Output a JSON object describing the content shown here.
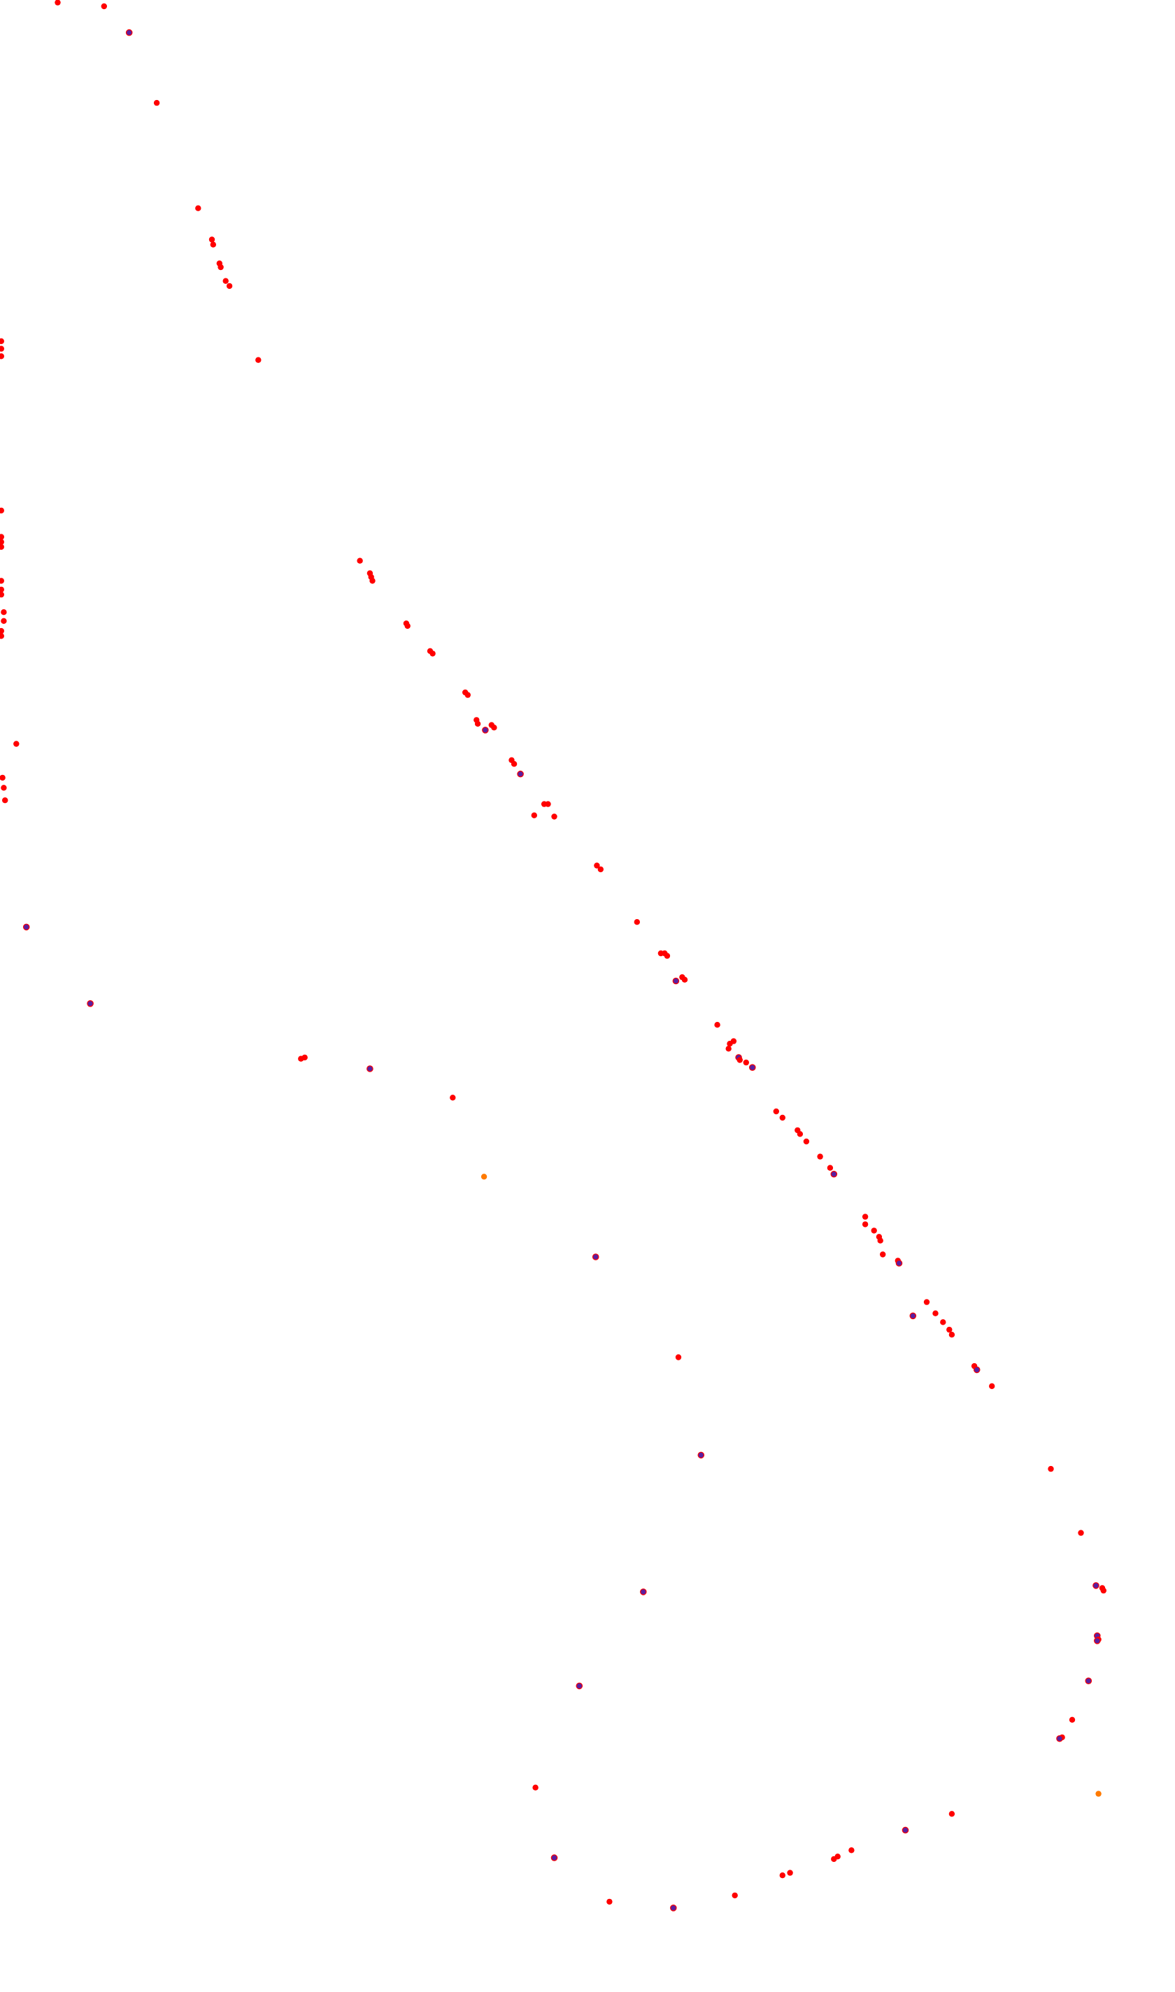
{
  "view": {
    "background_color": "#ffffff"
  },
  "dot_colors": {
    "red": "#ff0000",
    "purple": "#5a1fa0",
    "orange": "#ff7a00"
  },
  "dot_trail": {
    "count": 170,
    "note": ""
  }
}
